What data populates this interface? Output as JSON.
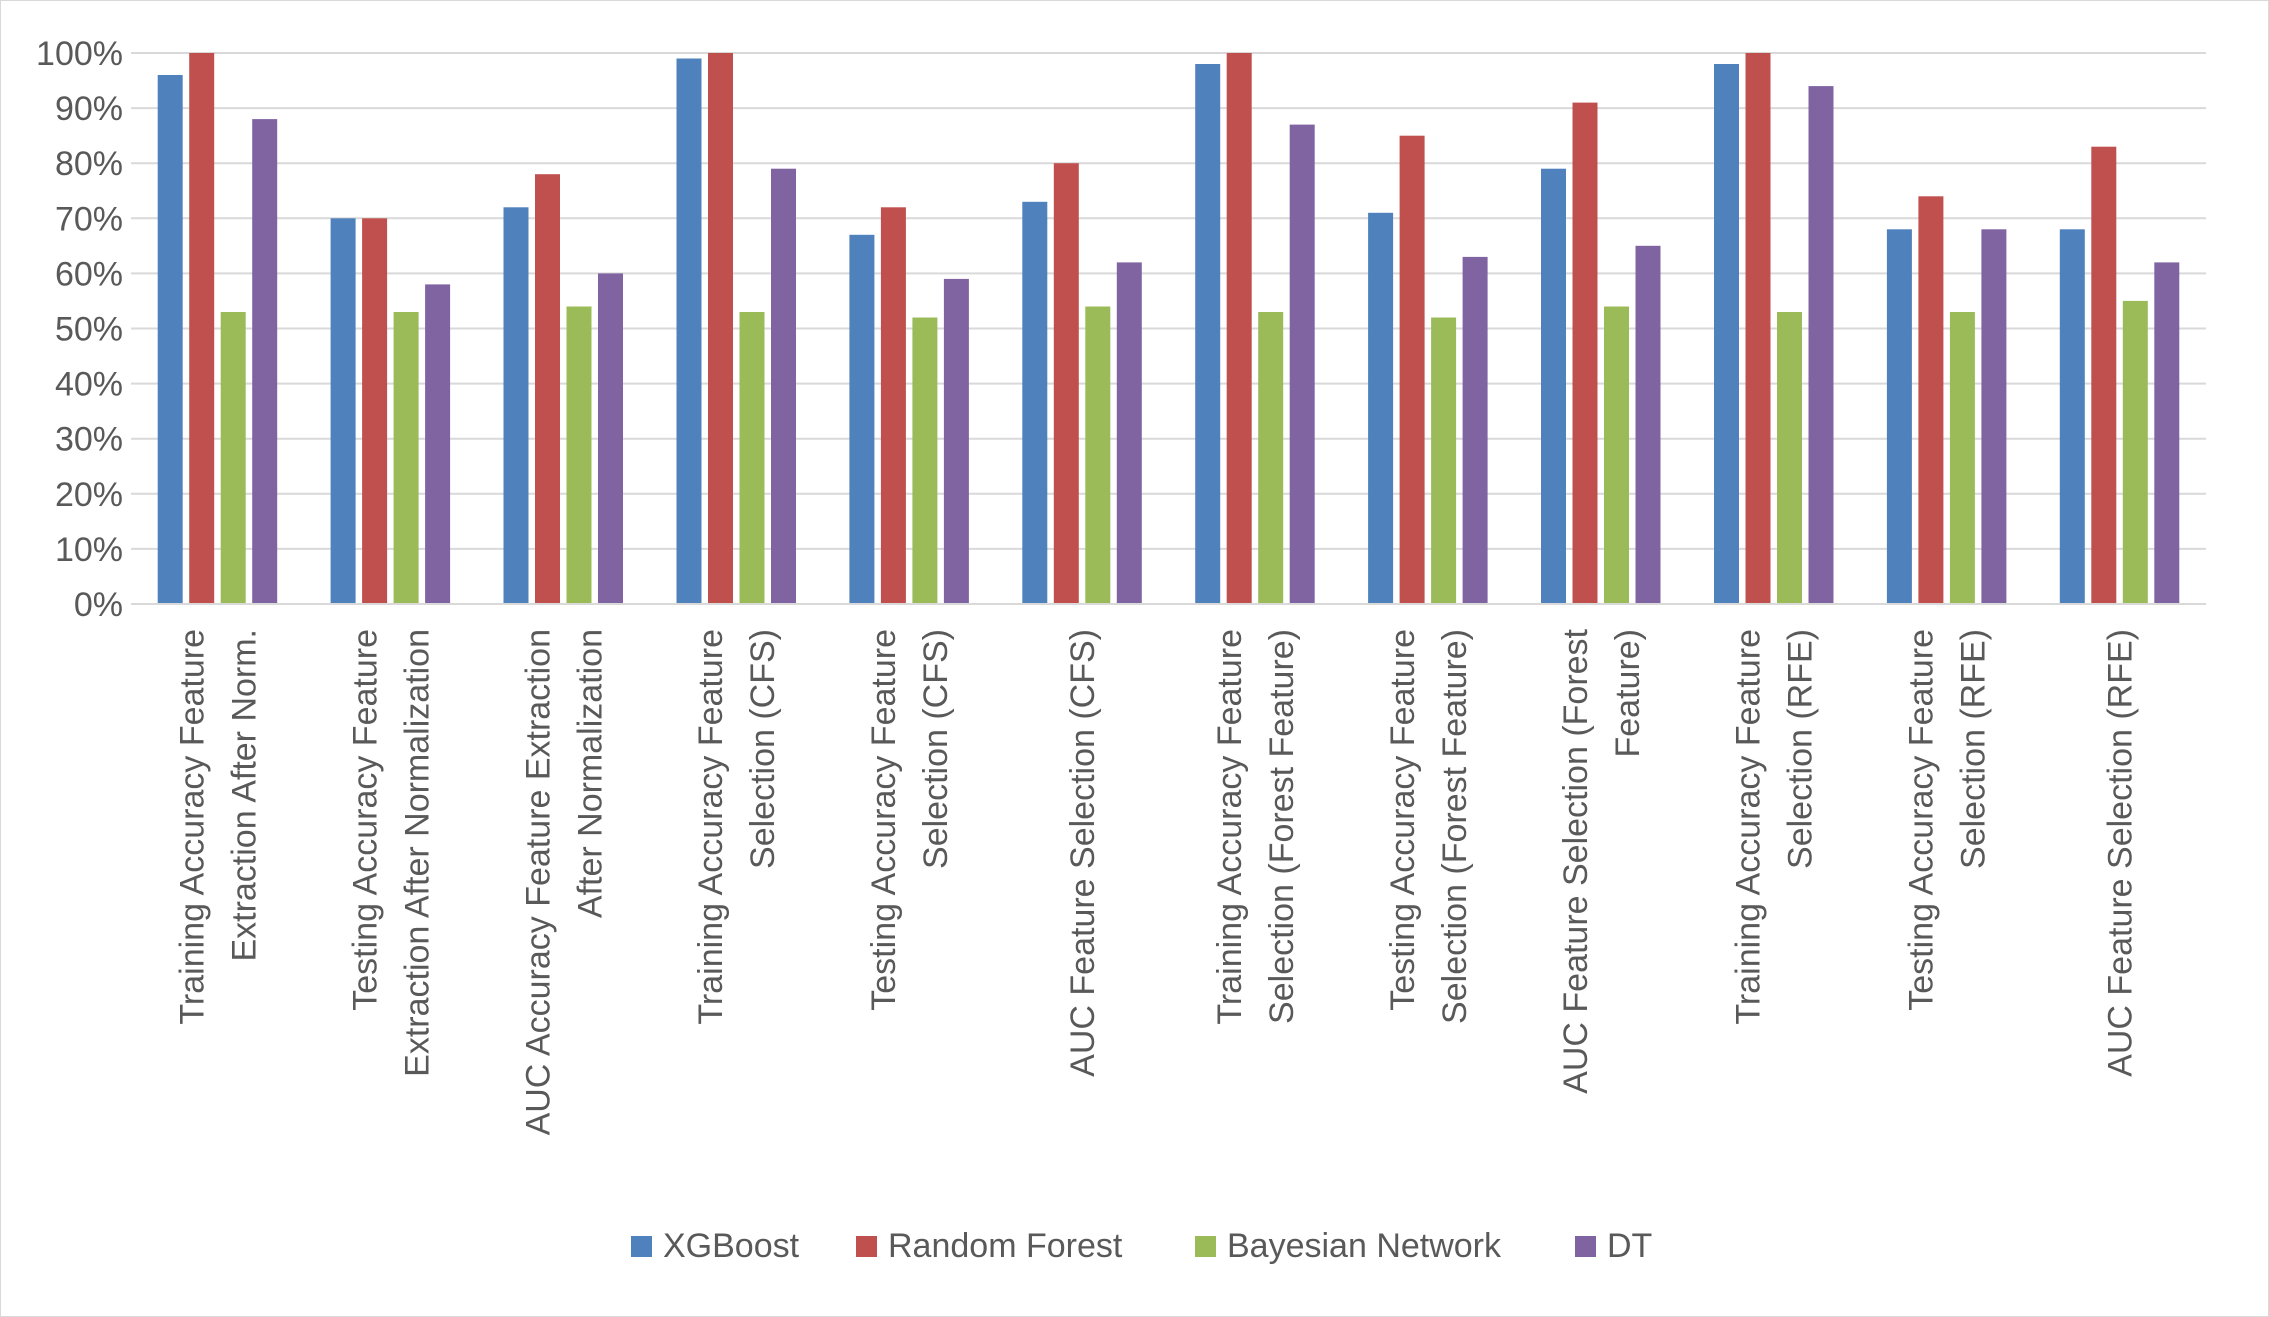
{
  "chart_data": {
    "type": "bar",
    "title": "",
    "xlabel": "",
    "ylabel": "",
    "ylim": [
      0,
      1
    ],
    "y_ticks": [
      {
        "value": 0,
        "label": "0%"
      },
      {
        "value": 0.1,
        "label": "10%"
      },
      {
        "value": 0.2,
        "label": "20%"
      },
      {
        "value": 0.3,
        "label": "30%"
      },
      {
        "value": 0.4,
        "label": "40%"
      },
      {
        "value": 0.5,
        "label": "50%"
      },
      {
        "value": 0.6,
        "label": "60%"
      },
      {
        "value": 0.7,
        "label": "70%"
      },
      {
        "value": 0.8,
        "label": "80%"
      },
      {
        "value": 0.9,
        "label": "90%"
      },
      {
        "value": 1.0,
        "label": "100%"
      }
    ],
    "grid": true,
    "legend_position": "bottom",
    "categories": [
      [
        "Training Accuracy Feature",
        "Extraction After Norm."
      ],
      [
        "Testing Accuracy Feature",
        "Extraction After Normalization"
      ],
      [
        "AUC Accuracy Feature Extraction",
        "After Normalization"
      ],
      [
        "Training Accuracy Feature",
        "Selection (CFS)"
      ],
      [
        "Testing Accuracy Feature",
        "Selection (CFS)"
      ],
      [
        "AUC Feature Selection (CFS)"
      ],
      [
        "Training Accuracy Feature",
        "Selection (Forest Feature)"
      ],
      [
        "Testing Accuracy Feature",
        "Selection (Forest Feature)"
      ],
      [
        "AUC Feature Selection  (Forest",
        "Feature)"
      ],
      [
        "Training Accuracy Feature",
        "Selection (RFE)"
      ],
      [
        "Testing Accuracy Feature",
        "Selection (RFE)"
      ],
      [
        "AUC Feature Selection  (RFE)"
      ]
    ],
    "series": [
      {
        "name": "XGBoost",
        "color": "#4f81bd",
        "values": [
          0.96,
          0.7,
          0.72,
          0.99,
          0.67,
          0.73,
          0.98,
          0.71,
          0.79,
          0.98,
          0.68,
          0.68
        ]
      },
      {
        "name": "Random Forest",
        "color": "#c0504d",
        "values": [
          1.0,
          0.7,
          0.78,
          1.0,
          0.72,
          0.8,
          1.0,
          0.85,
          0.91,
          1.0,
          0.74,
          0.83
        ]
      },
      {
        "name": "Bayesian Network",
        "color": "#9bbb59",
        "values": [
          0.53,
          0.53,
          0.54,
          0.53,
          0.52,
          0.54,
          0.53,
          0.52,
          0.54,
          0.53,
          0.53,
          0.55
        ]
      },
      {
        "name": "DT",
        "color": "#8064a2",
        "values": [
          0.88,
          0.58,
          0.6,
          0.79,
          0.59,
          0.62,
          0.87,
          0.63,
          0.65,
          0.94,
          0.68,
          0.62
        ]
      }
    ]
  },
  "colors": {
    "gridline": "#d9d9d9",
    "axis_text": "#595959",
    "border": "#d9d9d9"
  }
}
